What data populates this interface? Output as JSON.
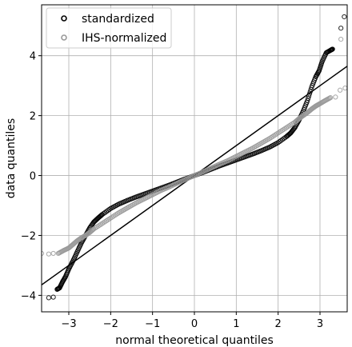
{
  "chart_data": {
    "type": "scatter",
    "xlabel": "normal theoretical quantiles",
    "ylabel": "data quantiles",
    "xlim": [
      -3.65,
      3.65
    ],
    "ylim": [
      -4.55,
      5.7
    ],
    "xticks": [
      -3,
      -2,
      -1,
      0,
      1,
      2,
      3
    ],
    "yticks": [
      -4,
      -2,
      0,
      2,
      4
    ],
    "grid": true,
    "legend_position": "top-left",
    "reference_line": {
      "slope": 1,
      "intercept": 0,
      "color": "#000000"
    },
    "series": [
      {
        "name": "standardized",
        "color": "#000000",
        "marker": "open-circle",
        "points": [
          [
            -3.48,
            -4.08
          ],
          [
            -3.37,
            -4.06
          ],
          [
            -3.28,
            -3.8
          ],
          [
            -3.22,
            -3.75
          ],
          [
            -3.15,
            -3.55
          ],
          [
            -3.08,
            -3.38
          ],
          [
            -3.0,
            -3.12
          ],
          [
            -2.9,
            -2.85
          ],
          [
            -2.8,
            -2.55
          ],
          [
            -2.7,
            -2.25
          ],
          [
            -2.6,
            -2.0
          ],
          [
            -2.5,
            -1.75
          ],
          [
            -2.4,
            -1.55
          ],
          [
            -2.3,
            -1.42
          ],
          [
            -2.2,
            -1.3
          ],
          [
            -2.0,
            -1.1
          ],
          [
            -1.8,
            -0.95
          ],
          [
            -1.6,
            -0.83
          ],
          [
            -1.4,
            -0.72
          ],
          [
            -1.2,
            -0.62
          ],
          [
            -1.0,
            -0.52
          ],
          [
            -0.8,
            -0.42
          ],
          [
            -0.6,
            -0.32
          ],
          [
            -0.4,
            -0.21
          ],
          [
            -0.2,
            -0.1
          ],
          [
            0.0,
            0.0
          ],
          [
            0.2,
            0.1
          ],
          [
            0.4,
            0.21
          ],
          [
            0.6,
            0.32
          ],
          [
            0.8,
            0.42
          ],
          [
            1.0,
            0.52
          ],
          [
            1.2,
            0.62
          ],
          [
            1.4,
            0.72
          ],
          [
            1.6,
            0.83
          ],
          [
            1.8,
            0.95
          ],
          [
            2.0,
            1.1
          ],
          [
            2.2,
            1.3
          ],
          [
            2.3,
            1.42
          ],
          [
            2.4,
            1.6
          ],
          [
            2.5,
            1.85
          ],
          [
            2.6,
            2.15
          ],
          [
            2.7,
            2.5
          ],
          [
            2.8,
            2.95
          ],
          [
            2.9,
            3.3
          ],
          [
            2.98,
            3.5
          ],
          [
            3.05,
            3.8
          ],
          [
            3.15,
            4.1
          ],
          [
            3.25,
            4.18
          ],
          [
            3.3,
            4.22
          ],
          [
            3.5,
            4.92
          ],
          [
            3.58,
            5.3
          ]
        ]
      },
      {
        "name": "IHS-normalized",
        "color": "#999999",
        "marker": "open-circle",
        "points": [
          [
            -3.65,
            -2.6
          ],
          [
            -3.48,
            -2.62
          ],
          [
            -3.37,
            -2.6
          ],
          [
            -3.25,
            -2.6
          ],
          [
            -3.12,
            -2.5
          ],
          [
            -3.0,
            -2.42
          ],
          [
            -2.9,
            -2.3
          ],
          [
            -2.8,
            -2.18
          ],
          [
            -2.7,
            -2.08
          ],
          [
            -2.6,
            -2.0
          ],
          [
            -2.5,
            -1.9
          ],
          [
            -2.4,
            -1.78
          ],
          [
            -2.2,
            -1.6
          ],
          [
            -2.0,
            -1.42
          ],
          [
            -1.8,
            -1.24
          ],
          [
            -1.6,
            -1.08
          ],
          [
            -1.4,
            -0.92
          ],
          [
            -1.2,
            -0.78
          ],
          [
            -1.0,
            -0.64
          ],
          [
            -0.8,
            -0.5
          ],
          [
            -0.6,
            -0.38
          ],
          [
            -0.4,
            -0.25
          ],
          [
            -0.2,
            -0.12
          ],
          [
            0.0,
            0.0
          ],
          [
            0.2,
            0.12
          ],
          [
            0.4,
            0.25
          ],
          [
            0.6,
            0.38
          ],
          [
            0.8,
            0.5
          ],
          [
            1.0,
            0.64
          ],
          [
            1.2,
            0.78
          ],
          [
            1.4,
            0.92
          ],
          [
            1.6,
            1.08
          ],
          [
            1.8,
            1.24
          ],
          [
            2.0,
            1.42
          ],
          [
            2.2,
            1.6
          ],
          [
            2.4,
            1.78
          ],
          [
            2.5,
            1.9
          ],
          [
            2.6,
            2.0
          ],
          [
            2.7,
            2.1
          ],
          [
            2.8,
            2.22
          ],
          [
            2.9,
            2.32
          ],
          [
            3.0,
            2.4
          ],
          [
            3.12,
            2.5
          ],
          [
            3.25,
            2.6
          ],
          [
            3.37,
            2.62
          ],
          [
            3.48,
            2.85
          ],
          [
            3.6,
            2.92
          ],
          [
            3.5,
            4.55
          ]
        ]
      }
    ]
  }
}
